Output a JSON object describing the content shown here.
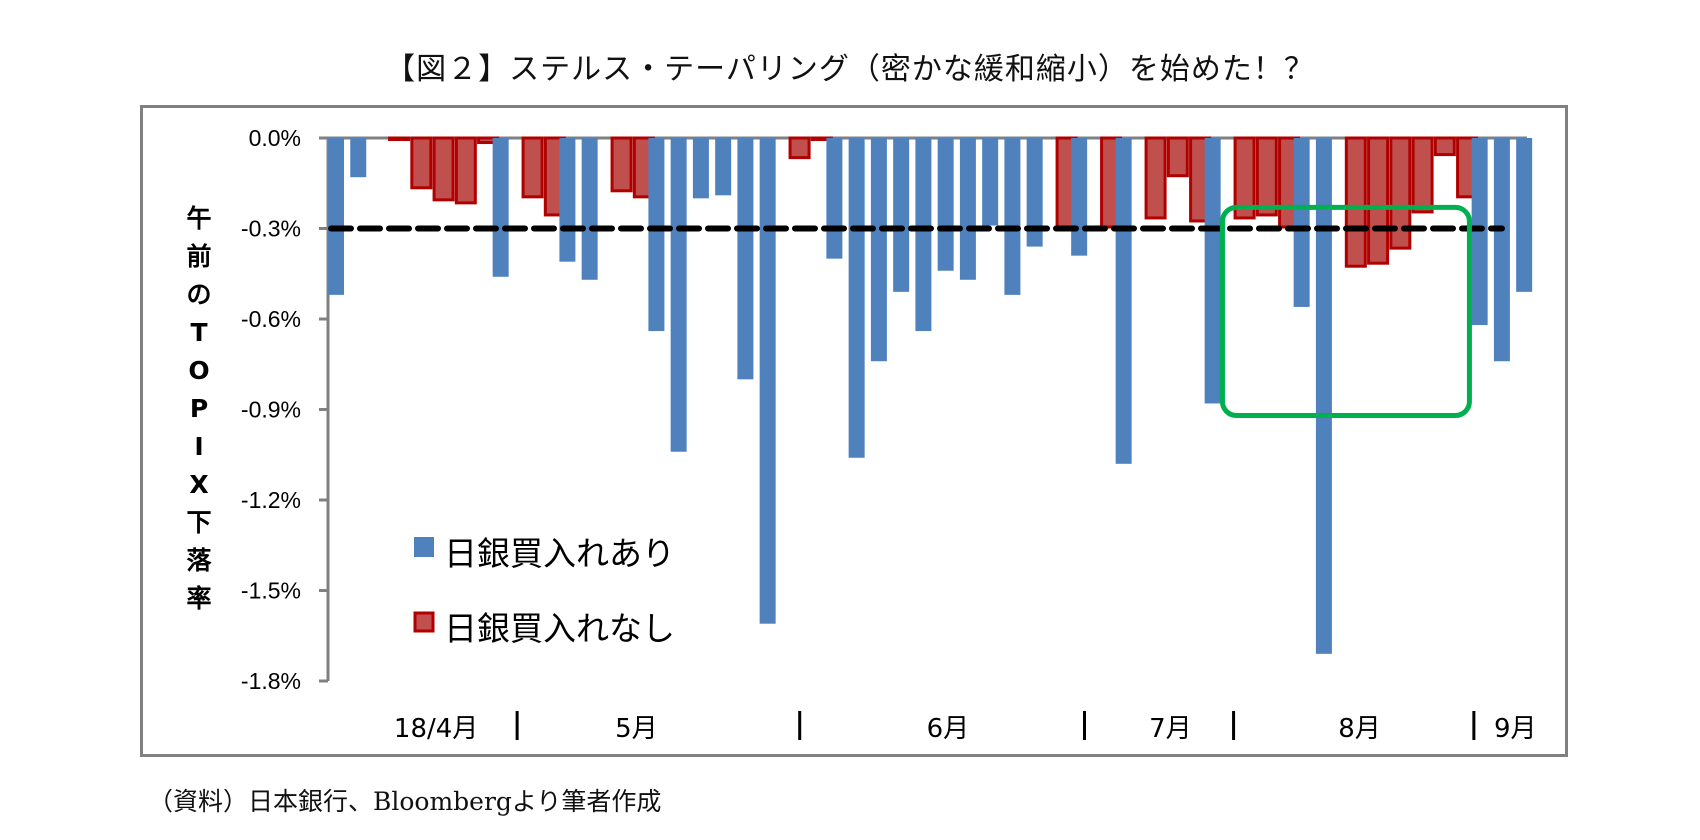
{
  "title": "【図２】ステルス・テーパリング（密かな緩和縮小）を始めた！？",
  "footnote": "（資料）日本銀行、Bloombergより筆者作成",
  "colors": {
    "boj_buy": "#4f81bd",
    "no_buy_fill": "#c0504d",
    "no_buy_border": "#b00000",
    "threshold": "#000000",
    "highlight_box": "#00b050",
    "axis": "#808080"
  },
  "chart_data": {
    "type": "bar",
    "title": "【図２】ステルス・テーパリング（密かな緩和縮小）を始めた！？",
    "ylabel": "午前のＴＯＰＩＸ下落率",
    "ylabel_chars": [
      "午",
      "前",
      "の",
      "T",
      "O",
      "P",
      "I",
      "X",
      "下",
      "落",
      "率"
    ],
    "ylim": [
      -1.8,
      0.0
    ],
    "yticks": [
      0.0,
      -0.3,
      -0.6,
      -0.9,
      -1.2,
      -1.5,
      -1.8
    ],
    "ytick_labels": [
      "0.0%",
      "-0.3%",
      "-0.6%",
      "-0.9%",
      "-1.2%",
      "-1.5%",
      "-1.8%"
    ],
    "threshold": -0.3,
    "legend": [
      {
        "key": "buy",
        "label": "日銀買入れあり"
      },
      {
        "key": "nobuy",
        "label": "日銀買入れなし"
      }
    ],
    "legend_position": "lower-left",
    "month_labels": [
      "18/4月",
      "5月",
      "6月",
      "7月",
      "8月",
      "9月"
    ],
    "month_slots": [
      4.5,
      13.5,
      27.5,
      37.5,
      46,
      53
    ],
    "month_separators": [
      8.5,
      21.2,
      34,
      40.7,
      51.5
    ],
    "highlight_box": {
      "from_slot": 40.2,
      "to_slot": 51.3,
      "y_top": -0.23,
      "y_bottom": -0.92
    },
    "bars": [
      {
        "slot": 0,
        "series": "buy",
        "value": -0.52
      },
      {
        "slot": 1,
        "series": "buy",
        "value": -0.13
      },
      {
        "slot": 2.7,
        "series": "nobuy",
        "value": -0.01
      },
      {
        "slot": 3.7,
        "series": "nobuy",
        "value": -0.17
      },
      {
        "slot": 4.7,
        "series": "nobuy",
        "value": -0.21
      },
      {
        "slot": 5.7,
        "series": "nobuy",
        "value": -0.22
      },
      {
        "slot": 6.7,
        "series": "nobuy",
        "value": -0.02
      },
      {
        "slot": 7.4,
        "series": "buy",
        "value": -0.46
      },
      {
        "slot": 8.7,
        "series": "nobuy",
        "value": -0.2
      },
      {
        "slot": 9.7,
        "series": "nobuy",
        "value": -0.26
      },
      {
        "slot": 10.4,
        "series": "buy",
        "value": -0.41
      },
      {
        "slot": 11.4,
        "series": "buy",
        "value": -0.47
      },
      {
        "slot": 12.7,
        "series": "nobuy",
        "value": -0.18
      },
      {
        "slot": 13.7,
        "series": "nobuy",
        "value": -0.2
      },
      {
        "slot": 14.4,
        "series": "buy",
        "value": -0.64
      },
      {
        "slot": 15.4,
        "series": "buy",
        "value": -1.04
      },
      {
        "slot": 16.4,
        "series": "buy",
        "value": -0.2
      },
      {
        "slot": 17.4,
        "series": "buy",
        "value": -0.19
      },
      {
        "slot": 18.4,
        "series": "buy",
        "value": -0.8
      },
      {
        "slot": 19.4,
        "series": "buy",
        "value": -1.61
      },
      {
        "slot": 20.7,
        "series": "nobuy",
        "value": -0.07
      },
      {
        "slot": 21.7,
        "series": "nobuy",
        "value": -0.005
      },
      {
        "slot": 22.4,
        "series": "buy",
        "value": -0.4
      },
      {
        "slot": 23.4,
        "series": "buy",
        "value": -1.06
      },
      {
        "slot": 24.4,
        "series": "buy",
        "value": -0.74
      },
      {
        "slot": 25.4,
        "series": "buy",
        "value": -0.51
      },
      {
        "slot": 26.4,
        "series": "buy",
        "value": -0.64
      },
      {
        "slot": 27.4,
        "series": "buy",
        "value": -0.44
      },
      {
        "slot": 28.4,
        "series": "buy",
        "value": -0.47
      },
      {
        "slot": 29.4,
        "series": "buy",
        "value": -0.29
      },
      {
        "slot": 30.4,
        "series": "buy",
        "value": -0.52
      },
      {
        "slot": 31.4,
        "series": "buy",
        "value": -0.36
      },
      {
        "slot": 32.7,
        "series": "nobuy",
        "value": -0.3
      },
      {
        "slot": 33.4,
        "series": "buy",
        "value": -0.39
      },
      {
        "slot": 34.7,
        "series": "nobuy",
        "value": -0.3
      },
      {
        "slot": 35.4,
        "series": "buy",
        "value": -1.08
      },
      {
        "slot": 36.7,
        "series": "nobuy",
        "value": -0.27
      },
      {
        "slot": 37.7,
        "series": "nobuy",
        "value": -0.13
      },
      {
        "slot": 38.7,
        "series": "nobuy",
        "value": -0.28
      },
      {
        "slot": 39.4,
        "series": "buy",
        "value": -0.88
      },
      {
        "slot": 40.7,
        "series": "nobuy",
        "value": -0.27
      },
      {
        "slot": 41.7,
        "series": "nobuy",
        "value": -0.26
      },
      {
        "slot": 42.7,
        "series": "nobuy",
        "value": -0.3
      },
      {
        "slot": 43.4,
        "series": "buy",
        "value": -0.56
      },
      {
        "slot": 44.4,
        "series": "buy",
        "value": -1.71
      },
      {
        "slot": 45.7,
        "series": "nobuy",
        "value": -0.43
      },
      {
        "slot": 46.7,
        "series": "nobuy",
        "value": -0.42
      },
      {
        "slot": 47.7,
        "series": "nobuy",
        "value": -0.37
      },
      {
        "slot": 48.7,
        "series": "nobuy",
        "value": -0.25
      },
      {
        "slot": 49.7,
        "series": "nobuy",
        "value": -0.06
      },
      {
        "slot": 50.7,
        "series": "nobuy",
        "value": -0.2
      },
      {
        "slot": 51.4,
        "series": "buy",
        "value": -0.62
      },
      {
        "slot": 52.4,
        "series": "buy",
        "value": -0.74
      },
      {
        "slot": 53.4,
        "series": "buy",
        "value": -0.51
      }
    ],
    "slot_count": 54
  }
}
